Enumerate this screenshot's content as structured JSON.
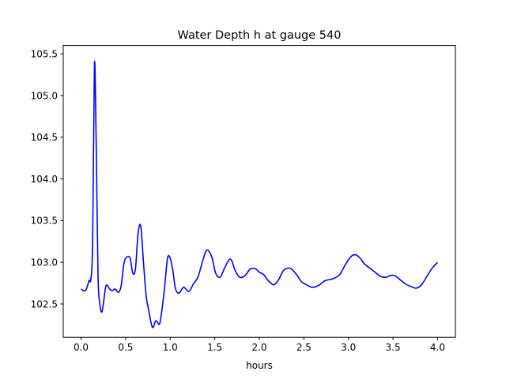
{
  "chart_data": {
    "type": "line",
    "title": "Water Depth h at gauge 540",
    "xlabel": "hours",
    "ylabel": "",
    "xlim": [
      -0.2,
      4.2
    ],
    "ylim": [
      102.1,
      105.6
    ],
    "grid": false,
    "line_color": "#0000ff",
    "x_ticks": [
      0.0,
      0.5,
      1.0,
      1.5,
      2.0,
      2.5,
      3.0,
      3.5,
      4.0
    ],
    "x_tick_labels": [
      "0.0",
      "0.5",
      "1.0",
      "1.5",
      "2.0",
      "2.5",
      "3.0",
      "3.5",
      "4.0"
    ],
    "y_ticks": [
      102.5,
      103.0,
      103.5,
      104.0,
      104.5,
      105.0,
      105.5
    ],
    "y_tick_labels": [
      "102.5",
      "103.0",
      "103.5",
      "104.0",
      "104.5",
      "105.0",
      "105.5"
    ],
    "series": [
      {
        "name": "h",
        "x": [
          0.0,
          0.05,
          0.09,
          0.11,
          0.13,
          0.15,
          0.17,
          0.19,
          0.21,
          0.23,
          0.25,
          0.28,
          0.32,
          0.35,
          0.38,
          0.42,
          0.45,
          0.48,
          0.51,
          0.55,
          0.58,
          0.61,
          0.64,
          0.67,
          0.7,
          0.73,
          0.76,
          0.8,
          0.84,
          0.88,
          0.91,
          0.94,
          0.97,
          1.0,
          1.03,
          1.06,
          1.1,
          1.15,
          1.21,
          1.26,
          1.31,
          1.36,
          1.4,
          1.43,
          1.47,
          1.51,
          1.56,
          1.61,
          1.66,
          1.69,
          1.73,
          1.78,
          1.84,
          1.9,
          1.96,
          2.0,
          2.05,
          2.1,
          2.16,
          2.21,
          2.27,
          2.32,
          2.36,
          2.42,
          2.47,
          2.53,
          2.59,
          2.66,
          2.74,
          2.82,
          2.9,
          2.97,
          3.03,
          3.08,
          3.13,
          3.18,
          3.24,
          3.3,
          3.36,
          3.42,
          3.47,
          3.52,
          3.58,
          3.64,
          3.7,
          3.76,
          3.82,
          3.88,
          3.94,
          4.0
        ],
        "values": [
          102.68,
          102.66,
          102.78,
          102.8,
          103.25,
          105.38,
          104.4,
          102.85,
          102.5,
          102.4,
          102.5,
          102.72,
          102.68,
          102.66,
          102.68,
          102.64,
          102.72,
          102.98,
          103.06,
          103.05,
          102.87,
          102.92,
          103.35,
          103.43,
          103.0,
          102.6,
          102.42,
          102.22,
          102.3,
          102.26,
          102.45,
          102.73,
          103.05,
          103.05,
          102.9,
          102.68,
          102.63,
          102.7,
          102.65,
          102.74,
          102.82,
          103.0,
          103.13,
          103.14,
          103.05,
          102.87,
          102.82,
          102.93,
          103.03,
          103.02,
          102.9,
          102.82,
          102.84,
          102.92,
          102.92,
          102.88,
          102.85,
          102.78,
          102.73,
          102.78,
          102.9,
          102.93,
          102.92,
          102.85,
          102.77,
          102.73,
          102.7,
          102.72,
          102.78,
          102.8,
          102.85,
          102.98,
          103.07,
          103.09,
          103.05,
          102.98,
          102.93,
          102.88,
          102.83,
          102.82,
          102.84,
          102.84,
          102.79,
          102.74,
          102.71,
          102.69,
          102.73,
          102.83,
          102.93,
          103.0
        ]
      }
    ]
  }
}
